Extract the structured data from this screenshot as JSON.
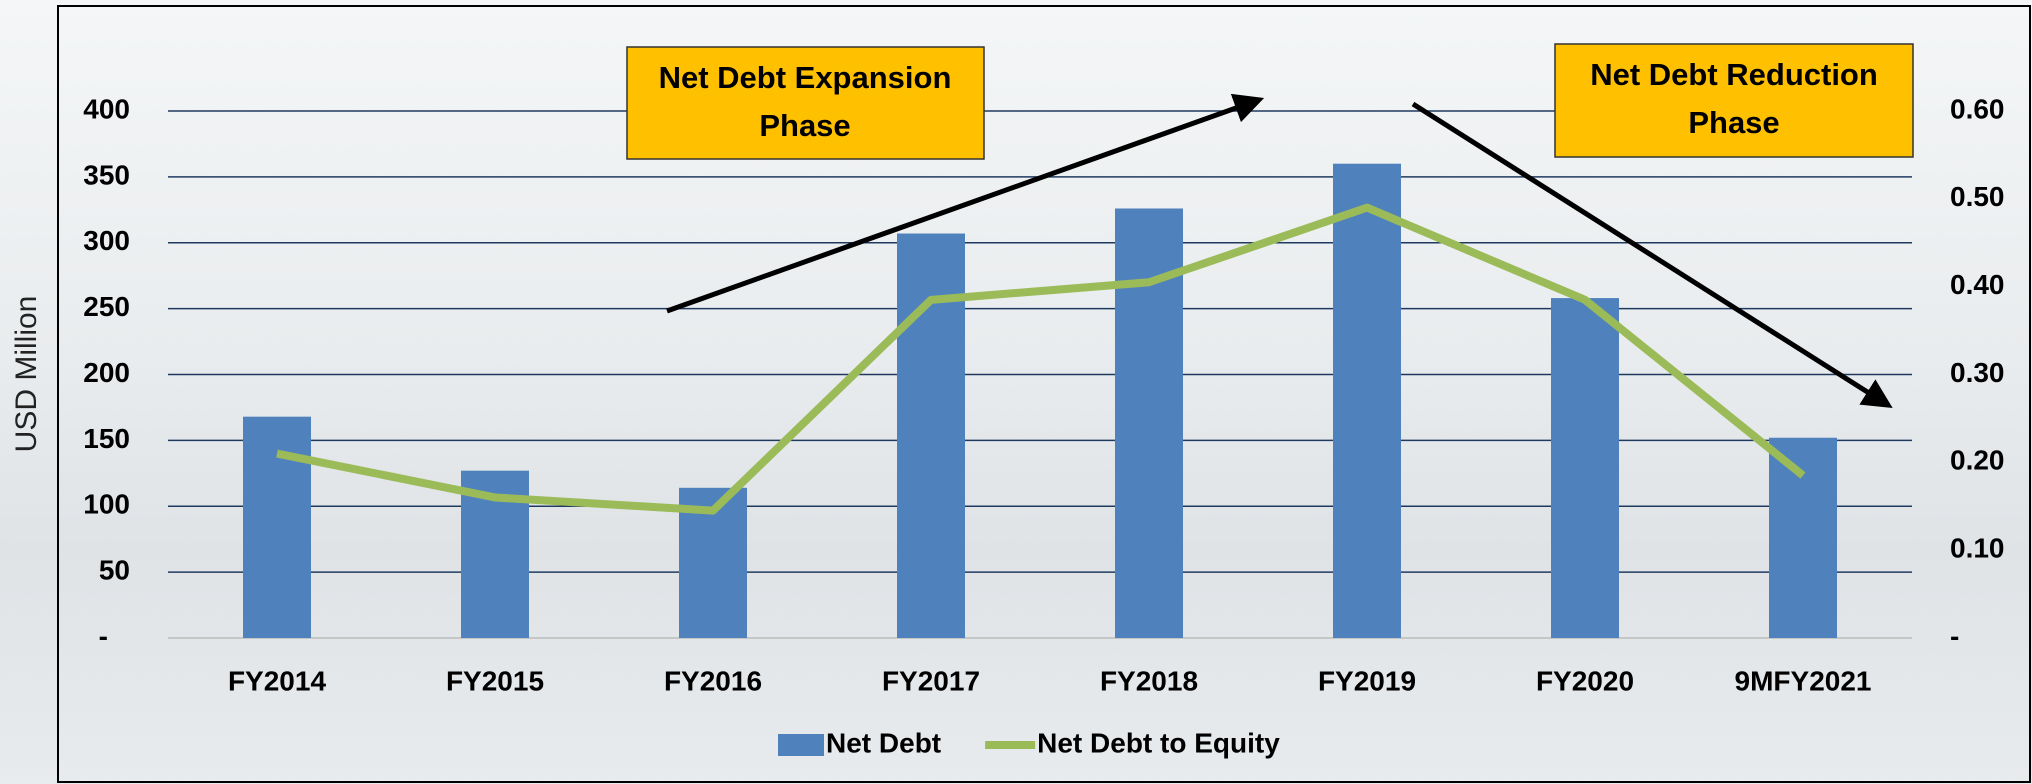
{
  "chart_data": {
    "type": "bar_line",
    "y_label": "USD Million",
    "categories": [
      "FY2014",
      "FY2015",
      "FY2016",
      "FY2017",
      "FY2018",
      "FY2019",
      "FY2020",
      "9MFY2021"
    ],
    "series": [
      {
        "name": "Net Debt",
        "type": "bar",
        "color": "#4f81bd",
        "values": [
          168,
          127,
          114,
          307,
          326,
          360,
          258,
          152
        ]
      },
      {
        "name": "Net Debt to Equity",
        "type": "line",
        "axis": "y2",
        "color": "#9bbb59",
        "values": [
          0.21,
          0.16,
          0.145,
          0.385,
          0.405,
          0.49,
          0.385,
          0.185
        ]
      }
    ],
    "ylim": [
      0,
      400
    ],
    "yticks": [
      {
        "value": 0,
        "label": "-"
      },
      50,
      100,
      150,
      200,
      250,
      300,
      350,
      400
    ],
    "y2lim": [
      0,
      0.6
    ],
    "y2ticks": [
      {
        "value": 0,
        "label": "-"
      },
      {
        "value": 0.1,
        "label": "0.10"
      },
      {
        "value": 0.2,
        "label": "0.20"
      },
      {
        "value": 0.3,
        "label": "0.30"
      },
      {
        "value": 0.4,
        "label": "0.40"
      },
      {
        "value": 0.5,
        "label": "0.50"
      },
      {
        "value": 0.6,
        "label": "0.60"
      }
    ],
    "grid": true,
    "legend": "bottom",
    "annotations": [
      {
        "lines": [
          "Net Debt Expansion",
          "Phase"
        ]
      },
      {
        "lines": [
          "Net Debt Reduction",
          "Phase"
        ]
      }
    ]
  }
}
